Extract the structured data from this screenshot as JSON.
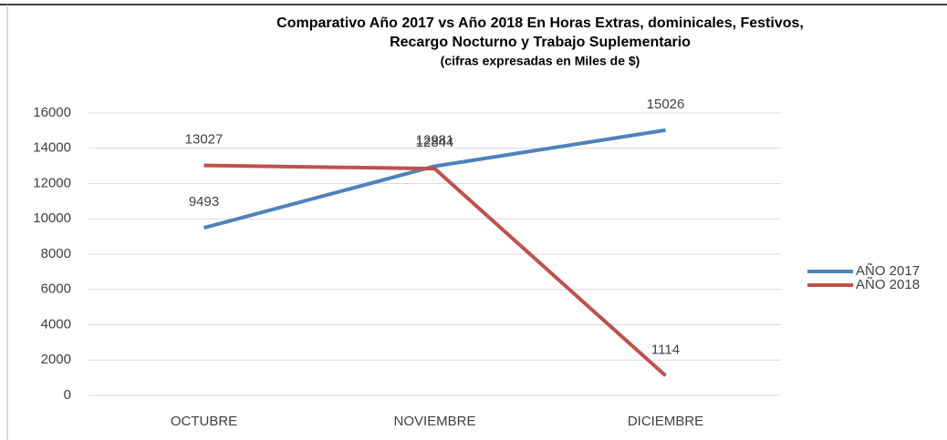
{
  "chart_data": {
    "type": "line",
    "title_lines": [
      "Comparativo Año 2017 vs Año 2018 En Horas Extras, dominicales, Festivos,",
      "Recargo Nocturno y Trabajo Suplementario"
    ],
    "subtitle": "(cifras expresadas en Miles de $)",
    "categories": [
      "OCTUBRE",
      "NOVIEMBRE",
      "DICIEMBRE"
    ],
    "series": [
      {
        "name": "AÑO 2017",
        "color": "#4f81bd",
        "values": [
          9493,
          12981,
          15026
        ]
      },
      {
        "name": "AÑO 2018",
        "color": "#c0504d",
        "values": [
          13027,
          12844,
          1114
        ]
      }
    ],
    "ylim": [
      0,
      16000
    ],
    "yticks": [
      0,
      2000,
      4000,
      6000,
      8000,
      10000,
      12000,
      14000,
      16000
    ],
    "grid": true,
    "legend": "right"
  }
}
